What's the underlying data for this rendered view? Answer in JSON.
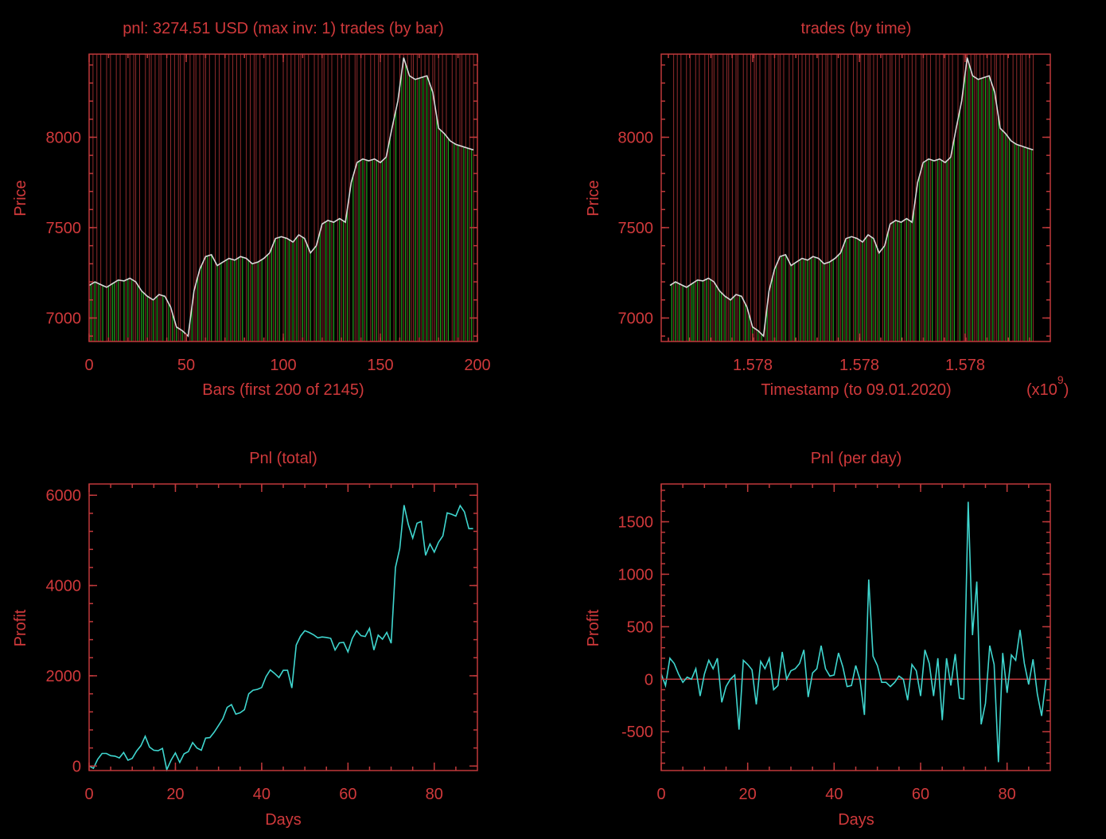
{
  "colors": {
    "background": "#000000",
    "axis": "#c0393b",
    "text": "#d0393b",
    "price_line": "#d8d8d8",
    "buy_line": "#1fa51f",
    "sell_line": "#c0393b",
    "pnl_line": "#3fd6cf"
  },
  "charts": {
    "tl": {
      "title": "pnl: 3274.51 USD (max inv: 1)  trades (by bar)",
      "xlabel": "Bars (first 200 of 2145)",
      "ylabel": "Price",
      "xticks": [
        "0",
        "50",
        "100",
        "150",
        "200"
      ],
      "yticks": [
        "7000",
        "7500",
        "8000"
      ]
    },
    "tr": {
      "title": "trades (by time)",
      "xlabel": "Timestamp (to 09.01.2020)",
      "ylabel": "Price",
      "xticks": [
        "1.578",
        "1.578",
        "1.578"
      ],
      "yticks": [
        "7000",
        "7500",
        "8000"
      ],
      "multiplier": "(x10",
      "multiplier_exp": "9",
      "multiplier_close": ")"
    },
    "bl": {
      "title": "Pnl (total)",
      "xlabel": "Days",
      "ylabel": "Profit",
      "xticks": [
        "0",
        "20",
        "40",
        "60",
        "80"
      ],
      "yticks": [
        "0",
        "2000",
        "4000",
        "6000"
      ]
    },
    "br": {
      "title": "Pnl (per day)",
      "xlabel": "Days",
      "ylabel": "Profit",
      "xticks": [
        "0",
        "20",
        "40",
        "60",
        "80"
      ],
      "yticks": [
        "-500",
        "0",
        "500",
        "1000",
        "1500"
      ]
    }
  },
  "chart_data": [
    {
      "type": "line",
      "title": "pnl: 3274.51 USD (max inv: 1)  trades (by bar)",
      "xlabel": "Bars (first 200 of 2145)",
      "ylabel": "Price",
      "xlim": [
        0,
        200
      ],
      "ylim": [
        6870,
        8460
      ],
      "x": [
        0,
        3,
        6,
        9,
        12,
        15,
        18,
        21,
        24,
        27,
        30,
        33,
        36,
        39,
        42,
        45,
        48,
        51,
        54,
        57,
        60,
        63,
        66,
        69,
        72,
        75,
        78,
        81,
        84,
        87,
        90,
        93,
        96,
        99,
        102,
        105,
        108,
        111,
        114,
        117,
        120,
        123,
        126,
        129,
        132,
        135,
        138,
        141,
        144,
        147,
        150,
        153,
        156,
        159,
        162,
        165,
        168,
        171,
        174,
        177,
        180,
        183,
        186,
        189,
        192,
        195,
        198
      ],
      "series": [
        {
          "values": [
            7180,
            7200,
            7185,
            7170,
            7190,
            7210,
            7205,
            7220,
            7200,
            7150,
            7120,
            7100,
            7130,
            7120,
            7060,
            6950,
            6930,
            6900,
            7150,
            7270,
            7340,
            7350,
            7290,
            7310,
            7330,
            7320,
            7340,
            7330,
            7300,
            7310,
            7330,
            7360,
            7440,
            7450,
            7440,
            7420,
            7460,
            7440,
            7360,
            7400,
            7520,
            7540,
            7530,
            7550,
            7530,
            7750,
            7860,
            7880,
            7870,
            7880,
            7860,
            7890,
            8050,
            8200,
            8440,
            8340,
            8320,
            8330,
            8340,
            8250,
            8050,
            8020,
            7980,
            7960,
            7950,
            7940,
            7930
          ]
        }
      ],
      "trades": {
        "buys": [
          1,
          3,
          5,
          7,
          10,
          12,
          13,
          15,
          18,
          20,
          22,
          25,
          27,
          28,
          30,
          33,
          35,
          38,
          41,
          43,
          45,
          48,
          50,
          53,
          56,
          58,
          61,
          63,
          66,
          68,
          71,
          73,
          75,
          77,
          79,
          82,
          84,
          87,
          89,
          92,
          94,
          96,
          98,
          101,
          103,
          105,
          107,
          110,
          112,
          114,
          117,
          119,
          122,
          124,
          126,
          129,
          131,
          133,
          136,
          139,
          141,
          143,
          146,
          148,
          151,
          153,
          155,
          158,
          161,
          163,
          165,
          168,
          170,
          172,
          174,
          176,
          179,
          181,
          183,
          185,
          188,
          190,
          193,
          195,
          197
        ],
        "sells": [
          2,
          4,
          6,
          9,
          11,
          14,
          16,
          19,
          21,
          23,
          24,
          26,
          29,
          31,
          32,
          34,
          36,
          37,
          40,
          42,
          44,
          46,
          47,
          49,
          52,
          54,
          55,
          57,
          59,
          60,
          62,
          65,
          67,
          70,
          72,
          74,
          76,
          78,
          81,
          83,
          85,
          86,
          88,
          91,
          93,
          95,
          97,
          100,
          102,
          104,
          106,
          108,
          109,
          111,
          113,
          116,
          118,
          120,
          121,
          123,
          125,
          128,
          130,
          132,
          134,
          137,
          138,
          140,
          142,
          145,
          147,
          149,
          150,
          152,
          154,
          157,
          160,
          162,
          164,
          166,
          167,
          169,
          171,
          173,
          175,
          177,
          178,
          180,
          182,
          184,
          187,
          189,
          191,
          192,
          194,
          196,
          198
        ]
      }
    },
    {
      "type": "line",
      "title": "trades (by time)",
      "xlabel": "Timestamp (to 09.01.2020)",
      "ylabel": "Price",
      "xticklabels": [
        "1.578",
        "1.578",
        "1.578"
      ],
      "multiplier": "x10^9",
      "ylim": [
        6870,
        8460
      ]
    },
    {
      "type": "line",
      "title": "Pnl (total)",
      "xlabel": "Days",
      "ylabel": "Profit",
      "xlim": [
        0,
        90
      ],
      "ylim": [
        -100,
        6250
      ],
      "x": [
        0,
        1,
        2,
        3,
        4,
        5,
        6,
        7,
        8,
        9,
        10,
        11,
        12,
        13,
        14,
        15,
        16,
        17,
        18,
        19,
        20,
        21,
        22,
        23,
        24,
        25,
        26,
        27,
        28,
        29,
        30,
        31,
        32,
        33,
        34,
        35,
        36,
        37,
        38,
        39,
        40,
        41,
        42,
        43,
        44,
        45,
        46,
        47,
        48,
        49,
        50,
        51,
        52,
        53,
        54,
        55,
        56,
        57,
        58,
        59,
        60,
        61,
        62,
        63,
        64,
        65,
        66,
        67,
        68,
        69,
        70,
        71,
        72,
        73,
        74,
        75,
        76,
        77,
        78,
        79,
        80,
        81,
        82,
        83,
        84,
        85,
        86,
        87,
        88,
        89
      ],
      "series": [
        {
          "values": [
            0,
            -50,
            150,
            280,
            280,
            230,
            220,
            180,
            300,
            130,
            170,
            330,
            450,
            660,
            420,
            350,
            340,
            390,
            -80,
            130,
            290,
            80,
            270,
            320,
            520,
            400,
            350,
            620,
            630,
            750,
            900,
            1050,
            1300,
            1360,
            1150,
            1180,
            1250,
            1600,
            1680,
            1700,
            1740,
            1980,
            2130,
            2050,
            1960,
            2120,
            2120,
            1730,
            2680,
            2880,
            3000,
            2960,
            2910,
            2840,
            2860,
            2850,
            2830,
            2570,
            2730,
            2740,
            2530,
            2830,
            3000,
            2890,
            2870,
            3050,
            2570,
            2900,
            2810,
            2960,
            2720,
            4400,
            4820,
            5780,
            5350,
            5050,
            5380,
            5420,
            4670,
            4920,
            4740,
            4960,
            5100,
            5610,
            5580,
            5540,
            5770,
            5630,
            5260,
            5260
          ]
        }
      ]
    },
    {
      "type": "line",
      "title": "Pnl (per day)",
      "xlabel": "Days",
      "ylabel": "Profit",
      "xlim": [
        0,
        90
      ],
      "ylim": [
        -870,
        1860
      ],
      "x": [
        0,
        1,
        2,
        3,
        4,
        5,
        6,
        7,
        8,
        9,
        10,
        11,
        12,
        13,
        14,
        15,
        16,
        17,
        18,
        19,
        20,
        21,
        22,
        23,
        24,
        25,
        26,
        27,
        28,
        29,
        30,
        31,
        32,
        33,
        34,
        35,
        36,
        37,
        38,
        39,
        40,
        41,
        42,
        43,
        44,
        45,
        46,
        47,
        48,
        49,
        50,
        51,
        52,
        53,
        54,
        55,
        56,
        57,
        58,
        59,
        60,
        61,
        62,
        63,
        64,
        65,
        66,
        67,
        68,
        69,
        70,
        71,
        72,
        73,
        74,
        75,
        76,
        77,
        78,
        79,
        80,
        81,
        82,
        83,
        84,
        85,
        86,
        87,
        88,
        89
      ],
      "series": [
        {
          "values": [
            50,
            -60,
            200,
            150,
            50,
            -30,
            20,
            0,
            100,
            -160,
            50,
            180,
            100,
            200,
            -220,
            -70,
            0,
            40,
            -480,
            180,
            140,
            90,
            -240,
            170,
            100,
            200,
            -100,
            -60,
            260,
            0,
            80,
            100,
            150,
            280,
            -170,
            60,
            100,
            320,
            100,
            30,
            40,
            250,
            120,
            -70,
            -60,
            130,
            -10,
            -340,
            950,
            220,
            130,
            -30,
            -30,
            -70,
            -30,
            30,
            0,
            -200,
            140,
            80,
            -160,
            280,
            150,
            -160,
            200,
            -390,
            200,
            -60,
            240,
            -180,
            -190,
            1690,
            420,
            930,
            -430,
            -230,
            320,
            140,
            -790,
            250,
            -130,
            230,
            180,
            470,
            150,
            -50,
            190,
            -140,
            -350,
            0
          ]
        }
      ]
    }
  ]
}
